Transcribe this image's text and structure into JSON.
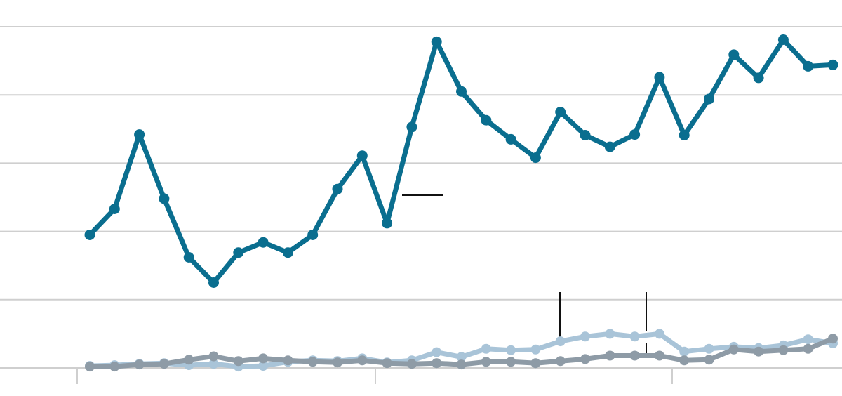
{
  "colors": {
    "primary": "#0a6e8f",
    "light": "#a9c4d8",
    "gray": "#8e9ba6"
  },
  "chart_data": {
    "type": "line",
    "title": "",
    "xlabel": "",
    "ylabel": "",
    "grid": true,
    "x": [
      1,
      2,
      3,
      4,
      5,
      6,
      7,
      8,
      9,
      10,
      11,
      12,
      13,
      14,
      15,
      16,
      17,
      18,
      19,
      20,
      21,
      22,
      23,
      24,
      25,
      26,
      27,
      28,
      29,
      30,
      31,
      32,
      33
    ],
    "ylim": [
      0,
      5
    ],
    "series": [
      {
        "color": "#0a6e8f",
        "values": [
          1.95,
          2.33,
          3.42,
          2.48,
          1.62,
          1.25,
          1.69,
          1.84,
          1.69,
          1.95,
          2.62,
          3.11,
          2.12,
          3.53,
          4.78,
          4.05,
          3.63,
          3.35,
          3.08,
          3.75,
          3.41,
          3.24,
          3.42,
          4.26,
          3.41,
          3.94,
          4.59,
          4.25,
          4.81,
          4.42,
          4.44
        ],
        "x": [
          1,
          2,
          3,
          4,
          5,
          6,
          7,
          8,
          9,
          10,
          11,
          12,
          13,
          14,
          15,
          16,
          17,
          18,
          19,
          20,
          21,
          22,
          23,
          24,
          25,
          26,
          27,
          28,
          29,
          30,
          31
        ]
      },
      {
        "color": "#a9c4d8",
        "values": [
          0.03,
          0.04,
          0.06,
          0.07,
          0.04,
          0.06,
          0.02,
          0.03,
          0.09,
          0.11,
          0.1,
          0.14,
          0.08,
          0.11,
          0.23,
          0.16,
          0.28,
          0.26,
          0.27,
          0.39,
          0.46,
          0.5,
          0.46,
          0.5,
          0.24,
          0.28,
          0.31,
          0.29,
          0.33,
          0.42,
          0.36
        ],
        "x": [
          1,
          2,
          3,
          4,
          5,
          6,
          7,
          8,
          9,
          10,
          11,
          12,
          13,
          14,
          15,
          16,
          17,
          18,
          19,
          20,
          21,
          22,
          23,
          24,
          25,
          26,
          27,
          28,
          29,
          30,
          31
        ]
      },
      {
        "color": "#8e9ba6",
        "values": [
          0.02,
          0.02,
          0.05,
          0.06,
          0.12,
          0.17,
          0.1,
          0.14,
          0.11,
          0.09,
          0.08,
          0.11,
          0.07,
          0.06,
          0.07,
          0.05,
          0.09,
          0.09,
          0.07,
          0.1,
          0.13,
          0.18,
          0.18,
          0.18,
          0.11,
          0.12,
          0.27,
          0.24,
          0.26,
          0.28,
          0.43
        ],
        "x": [
          1,
          2,
          3,
          4,
          5,
          6,
          7,
          8,
          9,
          10,
          11,
          12,
          13,
          14,
          15,
          16,
          17,
          18,
          19,
          20,
          21,
          22,
          23,
          24,
          25,
          26,
          27,
          28,
          29,
          30,
          31
        ]
      }
    ]
  }
}
